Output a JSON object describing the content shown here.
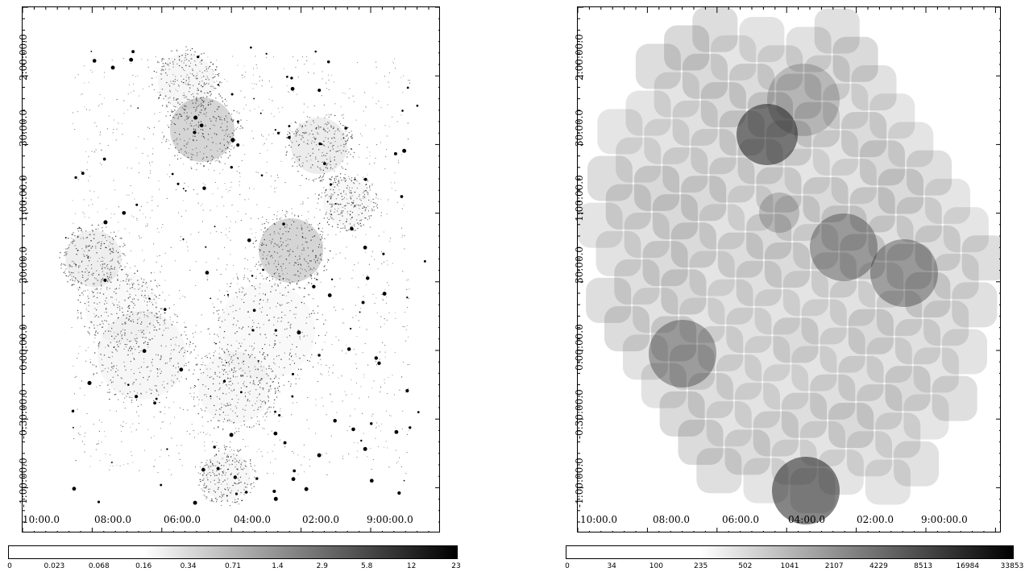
{
  "left_panel": {
    "x_ticks": [
      "10:00.0",
      "08:00.0",
      "06:00.0",
      "04:00.0",
      "02:00.0",
      "9:00:00.0"
    ],
    "y_ticks": [
      "2:00:00.0",
      "30:00.0",
      "1:00:00.0",
      "30:00.0",
      "0:00:00.0",
      "-0:30:00.0",
      "-1:00:00.0"
    ],
    "colorbar_ticks": [
      "0",
      "0.023",
      "0.068",
      "0.16",
      "0.34",
      "0.71",
      "1.4",
      "2.9",
      "5.8",
      "12",
      "23"
    ],
    "colorbar_colors": {
      "low": "#ffffff",
      "high": "#000000"
    }
  },
  "right_panel": {
    "x_ticks": [
      "10:00.0",
      "08:00.0",
      "06:00.0",
      "04:00.0",
      "02:00.0",
      "9:00:00.0"
    ],
    "y_ticks": [
      "2:00:00.0",
      "30:00.0",
      "1:00:00.0",
      "30:00.0",
      "0:00:00.0",
      "-0:30:00.0",
      "-1:00:00.0"
    ],
    "colorbar_ticks": [
      "0",
      "34",
      "100",
      "235",
      "502",
      "1041",
      "2107",
      "4229",
      "8513",
      "16984",
      "33853"
    ],
    "colorbar_colors": {
      "low": "#ffffff",
      "high": "#000000"
    }
  }
}
